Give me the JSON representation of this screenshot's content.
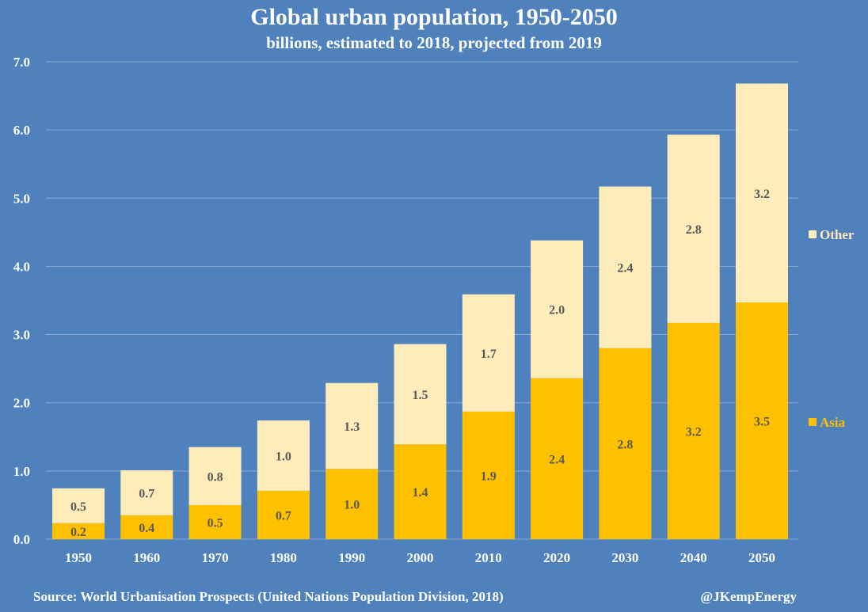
{
  "chart_data": {
    "type": "bar",
    "stacked": true,
    "title": "Global urban population, 1950-2050",
    "subtitle": "billions, estimated to 2018, projected from 2019",
    "xlabel": "",
    "ylabel": "",
    "ylim": [
      0,
      7
    ],
    "yticks": [
      "0.0",
      "1.0",
      "2.0",
      "3.0",
      "4.0",
      "5.0",
      "6.0",
      "7.0"
    ],
    "grid": true,
    "legend_placement": "right",
    "categories": [
      "1950",
      "1960",
      "1970",
      "1980",
      "1990",
      "2000",
      "2010",
      "2020",
      "2030",
      "2040",
      "2050"
    ],
    "series": [
      {
        "name": "Asia",
        "color": "#ffc000",
        "values": [
          0.235,
          0.35,
          0.5,
          0.71,
          1.03,
          1.39,
          1.87,
          2.36,
          2.8,
          3.17,
          3.47
        ],
        "labels": [
          "0.2",
          "0.4",
          "0.5",
          "0.7",
          "1.0",
          "1.4",
          "1.9",
          "2.4",
          "2.8",
          "3.2",
          "3.5"
        ]
      },
      {
        "name": "Other",
        "color": "#ffecbb",
        "values": [
          0.51,
          0.66,
          0.85,
          1.03,
          1.26,
          1.47,
          1.72,
          2.02,
          2.37,
          2.76,
          3.21
        ],
        "labels": [
          "0.5",
          "0.7",
          "0.8",
          "1.0",
          "1.3",
          "1.5",
          "1.7",
          "2.0",
          "2.4",
          "2.8",
          "3.2"
        ]
      }
    ],
    "source": "Source: World Urbanisation Prospects (United Nations Population Division, 2018)",
    "credit": "@JKempEnergy"
  }
}
